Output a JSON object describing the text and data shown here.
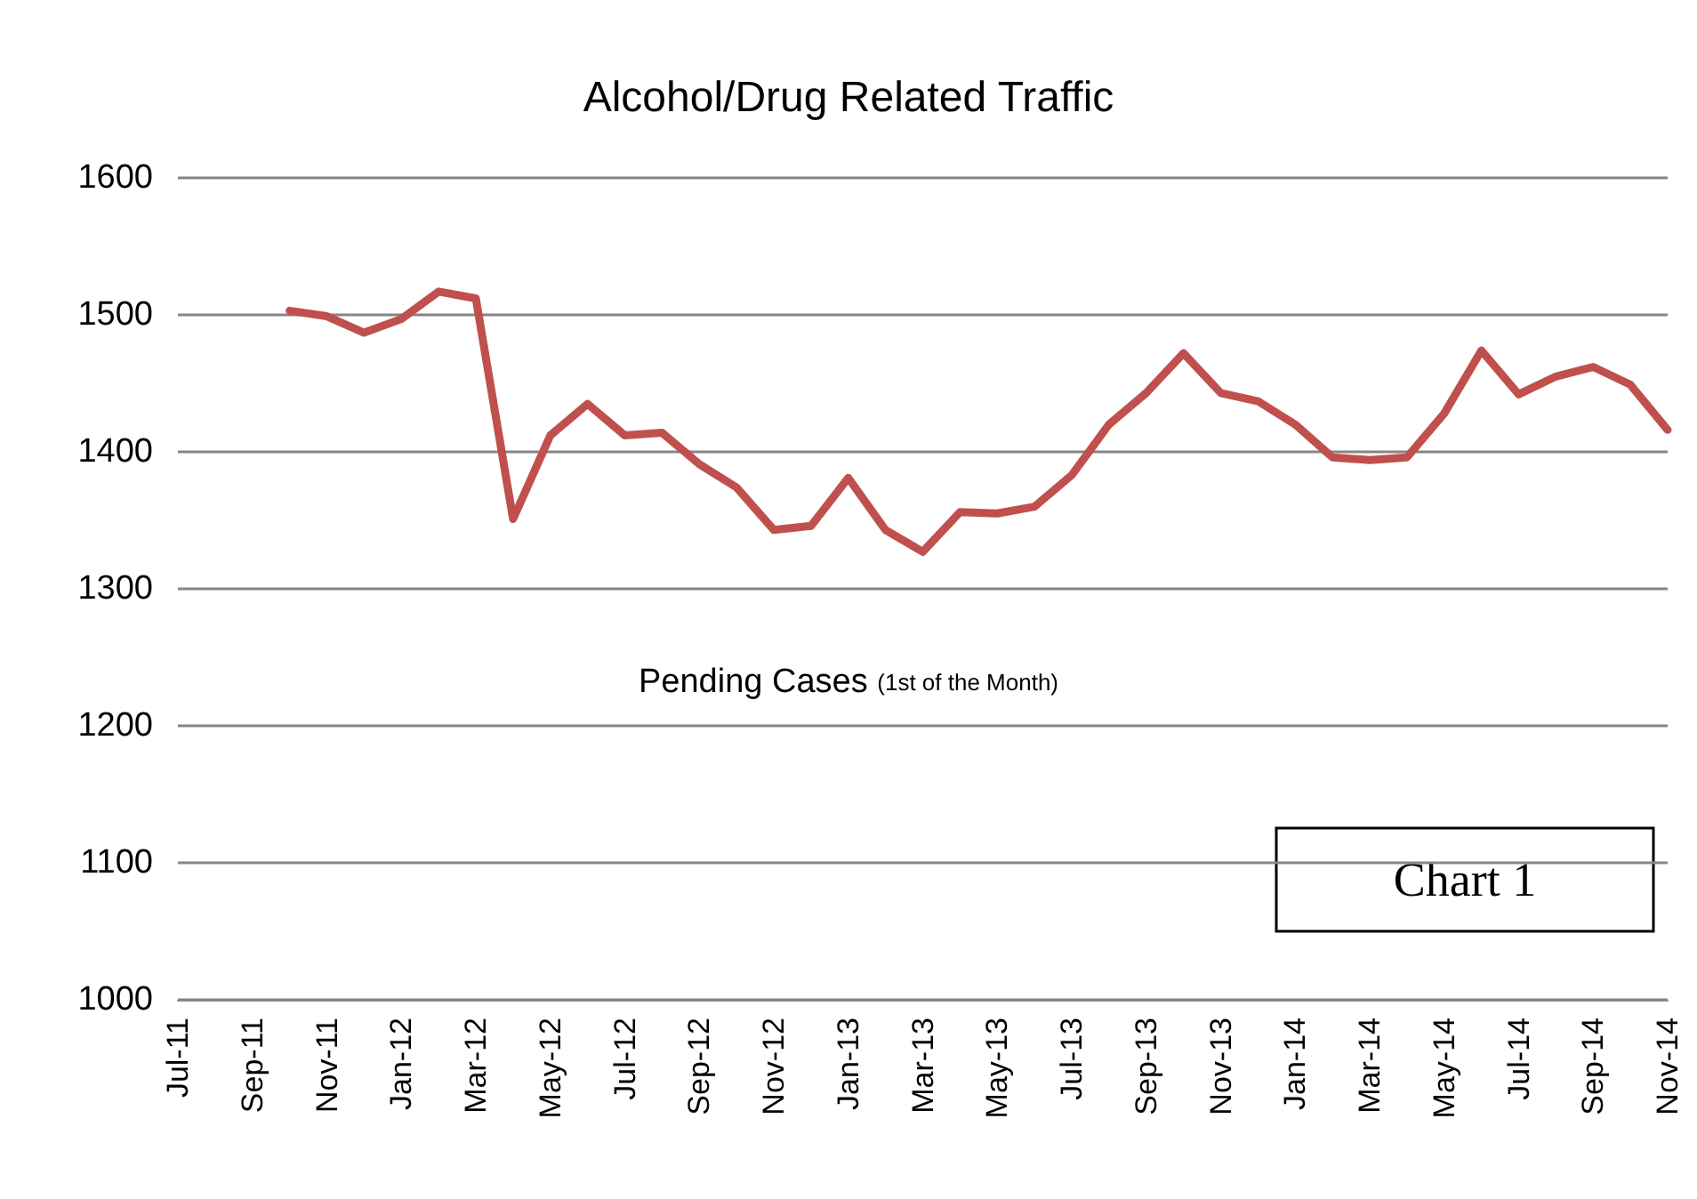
{
  "chart_data": {
    "type": "line",
    "title": "Alcohol/Drug Related Traffic",
    "subtitle": "Pending Cases (1st of the Month)",
    "annotations": [
      "Chart 1"
    ],
    "categories": [
      "Jul-11",
      null,
      "Sep-11",
      null,
      "Nov-11",
      null,
      "Jan-12",
      null,
      "Mar-12",
      null,
      "May-12",
      null,
      "Jul-12",
      null,
      "Sep-12",
      null,
      "Nov-12",
      null,
      "Jan-13",
      null,
      "Mar-13",
      null,
      "May-13",
      null,
      "Jul-13",
      null,
      "Sep-13",
      null,
      "Nov-13",
      null,
      "Jan-14",
      null,
      "Mar-14",
      null,
      "May-14",
      null,
      "Jul-14",
      null,
      "Sep-14",
      null,
      "Nov-14"
    ],
    "series": [
      {
        "color": "#c0504d",
        "values": [
          null,
          null,
          null,
          1503,
          1499,
          1487,
          1497,
          1517,
          1512,
          1351,
          1412,
          1435,
          1412,
          1414,
          1391,
          1374,
          1343,
          1346,
          1381,
          1343,
          1327,
          1356,
          1355,
          1360,
          1383,
          1420,
          1443,
          1472,
          1443,
          1437,
          1420,
          1396,
          1394,
          1396,
          1428,
          1474,
          1442,
          1455,
          1462,
          1449,
          1416
        ]
      }
    ],
    "ylim": [
      1000,
      1600
    ],
    "yticks": [
      1000,
      1100,
      1200,
      1300,
      1400,
      1500,
      1600
    ],
    "grid": "y",
    "marker": "none",
    "line_style": "solid"
  }
}
